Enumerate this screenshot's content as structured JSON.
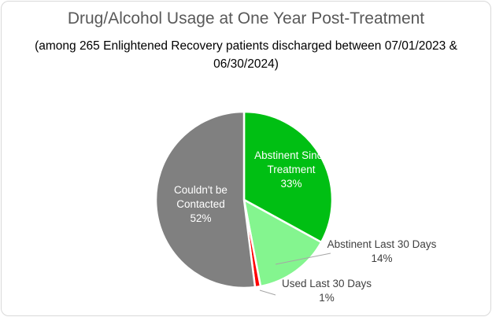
{
  "chart_data": {
    "type": "pie",
    "title": "Drug/Alcohol Usage at One Year Post-Treatment",
    "subtitle": "(among 265 Enlightened Recovery patients discharged between 07/01/2023 & 06/30/2024)",
    "slices": [
      {
        "label": "Abstinent Since Treatment",
        "value": 33,
        "display": "33%",
        "color": "#00bf13",
        "label_color": "#ffffff"
      },
      {
        "label": "Abstinent Last 30 Days",
        "value": 14,
        "display": "14%",
        "color": "#84f58f",
        "label_color": "#404040"
      },
      {
        "label": "Used Last 30 Days",
        "value": 1,
        "display": "1%",
        "color": "#ff0000",
        "label_color": "#404040"
      },
      {
        "label": "Couldn't be Contacted",
        "value": 52,
        "display": "52%",
        "color": "#808080",
        "label_color": "#ffffff"
      }
    ],
    "start_angle": "12 o'clock",
    "direction": "clockwise",
    "legend": "none"
  }
}
